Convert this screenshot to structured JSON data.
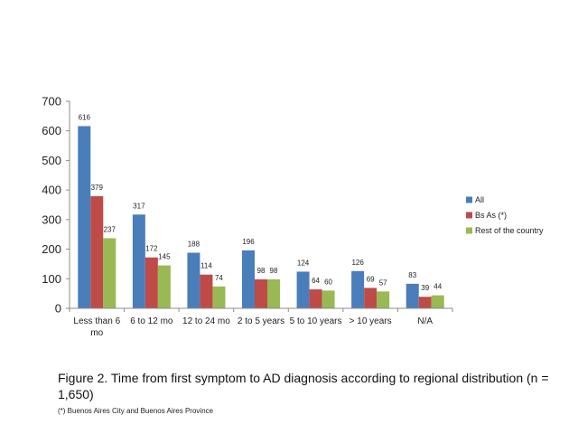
{
  "chart_data": {
    "type": "bar",
    "categories": [
      "Less than 6 mo",
      "6 to 12 mo",
      "12 to 24 mo",
      "2 to 5 years",
      "5 to 10 years",
      "> 10 years",
      "N/A"
    ],
    "category_lines": [
      [
        "Less than 6",
        "mo"
      ],
      [
        "6 to 12 mo"
      ],
      [
        "12 to 24 mo"
      ],
      [
        "2 to 5 years"
      ],
      [
        "5 to 10 years"
      ],
      [
        "> 10 years"
      ],
      [
        "N/A"
      ]
    ],
    "series": [
      {
        "name": "All",
        "color": "#4a7ebb",
        "values": [
          616,
          317,
          188,
          196,
          124,
          126,
          83
        ]
      },
      {
        "name": "Bs As (*)",
        "color": "#be4b48",
        "values": [
          379,
          172,
          114,
          98,
          64,
          69,
          39
        ]
      },
      {
        "name": "Rest of the country",
        "color": "#98b954",
        "values": [
          237,
          145,
          74,
          98,
          60,
          57,
          44
        ]
      }
    ],
    "ylim": [
      0,
      700
    ],
    "yticks": [
      0,
      100,
      200,
      300,
      400,
      500,
      600,
      700
    ],
    "grid": false,
    "legend": "right",
    "data_labels": true
  },
  "caption": {
    "title": "Figure 2. Time from first symptom to AD diagnosis according to regional distribution (n = 1,650)",
    "note": "(*) Buenos Aires City and Buenos Aires Province"
  }
}
